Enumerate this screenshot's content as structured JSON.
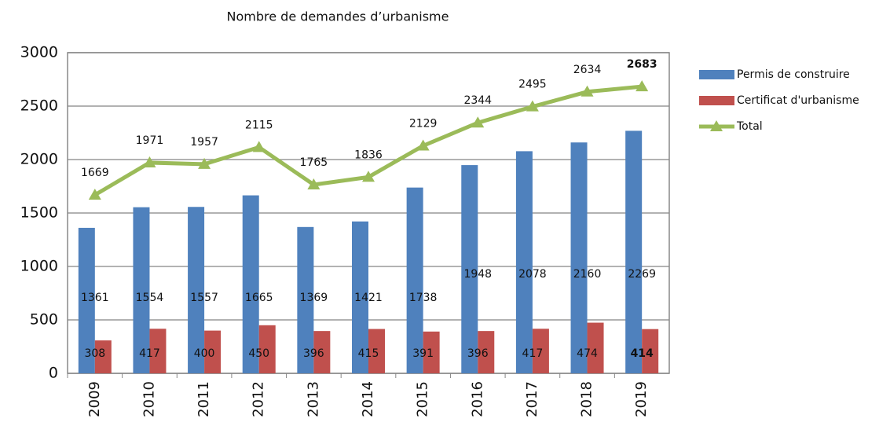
{
  "chart_data": {
    "type": "bar_line",
    "title": "Nombre de demandes d’urbanisme",
    "categories": [
      "2009",
      "2010",
      "2011",
      "2012",
      "2013",
      "2014",
      "2015",
      "2016",
      "2017",
      "2018",
      "2019"
    ],
    "series": [
      {
        "name": "Permis de construire",
        "type": "bar",
        "color": "#4f81bd",
        "values": [
          1361,
          1554,
          1557,
          1665,
          1369,
          1421,
          1738,
          1948,
          2078,
          2160,
          2269
        ]
      },
      {
        "name": "Certificat d'urbanisme",
        "type": "bar",
        "color": "#c0504d",
        "values": [
          308,
          417,
          400,
          450,
          396,
          415,
          391,
          396,
          417,
          474,
          414
        ]
      },
      {
        "name": "Total",
        "type": "line",
        "color": "#9bbb59",
        "values": [
          1669,
          1971,
          1957,
          2115,
          1765,
          1836,
          2129,
          2344,
          2495,
          2634,
          2683
        ]
      }
    ],
    "ylim": [
      0,
      3000
    ],
    "yticks": [
      0,
      500,
      1000,
      1500,
      2000,
      2500,
      3000
    ],
    "grid": true,
    "legend": "right"
  }
}
